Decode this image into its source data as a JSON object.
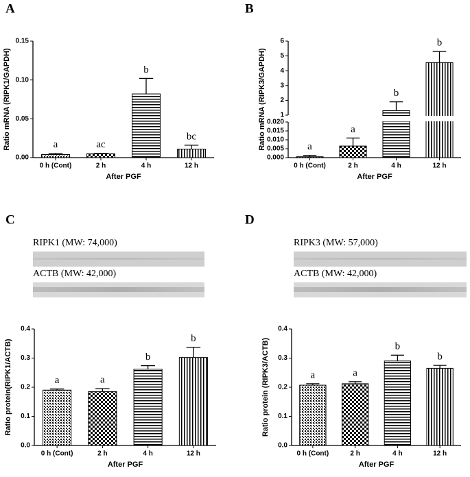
{
  "chart_data": [
    {
      "type": "bar",
      "panel_label": "A",
      "ylabel": "Ratio mRNA (RIPK1/GAPDH)",
      "xlabel": "After PGF",
      "categories": [
        "0 h (Cont)",
        "2 h",
        "4 h",
        "12 h"
      ],
      "values": [
        0.004,
        0.005,
        0.082,
        0.011
      ],
      "errors": [
        0.0015,
        0.0005,
        0.02,
        0.005
      ],
      "annotations": [
        "a",
        "ac",
        "b",
        "bc"
      ],
      "patterns": [
        "dots",
        "checker",
        "hlines",
        "vlines"
      ],
      "ylim": [
        0,
        0.15
      ],
      "yticks": [
        {
          "value": 0,
          "label": "0.00"
        },
        {
          "value": 0.05,
          "label": "0.05"
        },
        {
          "value": 0.1,
          "label": "0.10"
        },
        {
          "value": 0.15,
          "label": "0.15"
        }
      ]
    },
    {
      "type": "broken_bar",
      "panel_label": "B",
      "ylabel": "Ratio mRNA (RIPK3/GAPDH)",
      "xlabel": "After PGF",
      "categories": [
        "0 h (Cont)",
        "2 h",
        "4 h",
        "12 h"
      ],
      "values": [
        0.0005,
        0.0065,
        1.3,
        4.55
      ],
      "errors": [
        0.0008,
        0.0045,
        0.6,
        0.75
      ],
      "annotations": [
        "a",
        "a",
        "b",
        "b"
      ],
      "patterns": [
        "dots",
        "checker",
        "hlines",
        "vlines"
      ],
      "segments": [
        {
          "ylim": [
            0,
            0.02
          ],
          "yticks": [
            {
              "value": 0,
              "label": "0.000"
            },
            {
              "value": 0.005,
              "label": "0.005"
            },
            {
              "value": 0.01,
              "label": "0.010"
            },
            {
              "value": 0.015,
              "label": "0.015"
            },
            {
              "value": 0.02,
              "label": "0.020"
            }
          ]
        },
        {
          "ylim": [
            1,
            6
          ],
          "yticks": [
            1,
            2,
            3,
            4,
            5,
            6
          ]
        }
      ]
    },
    {
      "type": "bar",
      "panel_label": "C",
      "ylabel": "Ratio protein(RIPK1/ACTB)",
      "xlabel": "After PGF",
      "blots": [
        "RIPK1 (MW: 74,000)",
        "ACTB (MW: 42,000)"
      ],
      "categories": [
        "0 h (Cont)",
        "2 h",
        "4 h",
        "12 h"
      ],
      "values": [
        0.19,
        0.185,
        0.262,
        0.302
      ],
      "errors": [
        0.004,
        0.01,
        0.012,
        0.035
      ],
      "annotations": [
        "a",
        "a",
        "b",
        "b"
      ],
      "patterns": [
        "dots",
        "checker",
        "hlines",
        "vlines"
      ],
      "ylim": [
        0,
        0.4
      ],
      "yticks": [
        {
          "value": 0,
          "label": "0.0"
        },
        {
          "value": 0.1,
          "label": "0.1"
        },
        {
          "value": 0.2,
          "label": "0.2"
        },
        {
          "value": 0.3,
          "label": "0.3"
        },
        {
          "value": 0.4,
          "label": "0.4"
        }
      ]
    },
    {
      "type": "bar",
      "panel_label": "D",
      "ylabel": "Ratio protein (RIPK3/ACTB)",
      "xlabel": "After PGF",
      "blots": [
        "RIPK3 (MW: 57,000)",
        "ACTB (MW: 42,000)"
      ],
      "categories": [
        "0 h (Cont)",
        "2 h",
        "4 h",
        "12 h"
      ],
      "values": [
        0.207,
        0.212,
        0.29,
        0.265
      ],
      "errors": [
        0.005,
        0.007,
        0.02,
        0.01
      ],
      "annotations": [
        "a",
        "a",
        "b",
        "b"
      ],
      "patterns": [
        "dots",
        "checker",
        "hlines",
        "vlines"
      ],
      "ylim": [
        0,
        0.4
      ],
      "yticks": [
        {
          "value": 0,
          "label": "0.0"
        },
        {
          "value": 0.1,
          "label": "0.1"
        },
        {
          "value": 0.2,
          "label": "0.2"
        },
        {
          "value": 0.3,
          "label": "0.3"
        },
        {
          "value": 0.4,
          "label": "0.4"
        }
      ]
    }
  ]
}
